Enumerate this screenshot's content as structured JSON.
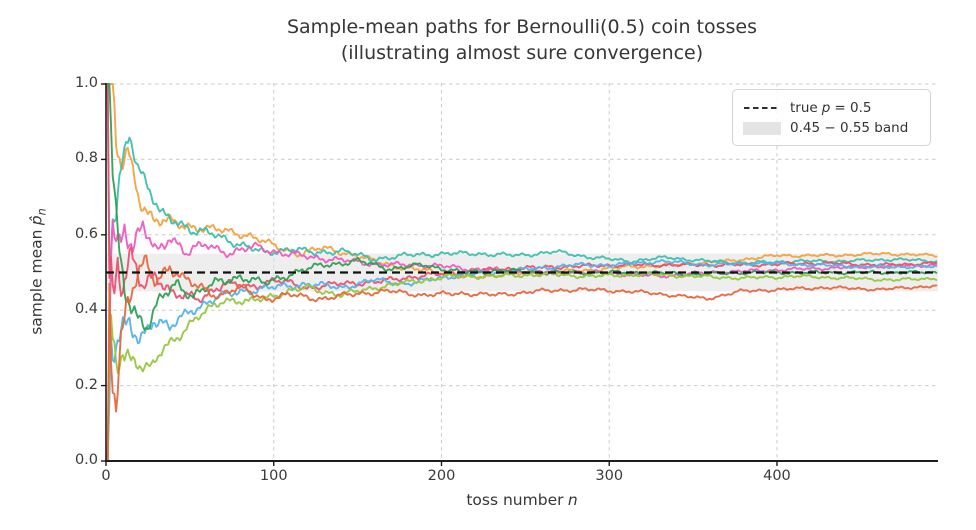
{
  "header": {
    "title": "Sample-mean paths for Bernoulli(0.5) coin tosses",
    "subtitle": "(illustrating almost sure convergence)"
  },
  "axes": {
    "xlabel_pre": "toss number",
    "xlabel_var": "n",
    "ylabel_pre": "sample mean",
    "ylabel_var": "p̂",
    "ylabel_sub": "n",
    "xticks": [
      {
        "v": 0,
        "label": "0"
      },
      {
        "v": 100,
        "label": "100"
      },
      {
        "v": 200,
        "label": "200"
      },
      {
        "v": 300,
        "label": "300"
      },
      {
        "v": 400,
        "label": "400"
      }
    ],
    "yticks": [
      {
        "v": 0.0,
        "label": "0.0"
      },
      {
        "v": 0.2,
        "label": "0.2"
      },
      {
        "v": 0.4,
        "label": "0.4"
      },
      {
        "v": 0.6,
        "label": "0.6"
      },
      {
        "v": 0.8,
        "label": "0.8"
      },
      {
        "v": 1.0,
        "label": "1.0"
      }
    ]
  },
  "legend": {
    "items": [
      {
        "sample": "dash-line",
        "pre": "true",
        "var": "p",
        "post": "= 0.5"
      },
      {
        "sample": "band-swatch",
        "label": "0.45 − 0.55 band"
      }
    ]
  },
  "colors": {
    "refline": "#111111",
    "band": "#e0e0e0",
    "grid": "#cccccc",
    "spine": "#1c1c1c",
    "text": "#363636"
  },
  "chart_data": {
    "type": "line",
    "title": "Sample-mean paths for Bernoulli(0.5) coin tosses",
    "subtitle": "(illustrating almost sure convergence)",
    "xlabel": "toss number n",
    "ylabel": "sample mean p̂_n",
    "xlim": [
      0,
      496
    ],
    "ylim": [
      0,
      1
    ],
    "grid": true,
    "legend_position": "upper right",
    "reference_line": {
      "y": 0.5,
      "label": "true p = 0.5",
      "style": "dashed",
      "color": "#111111"
    },
    "band": {
      "ymin": 0.45,
      "ymax": 0.55,
      "label": "0.45 − 0.55 band",
      "color": "#e0e0e0",
      "opacity": 0.55
    },
    "series": [
      {
        "name": "path-1-amber",
        "color": "#f5a03d",
        "keypoints": [
          [
            1,
            1
          ],
          [
            4,
            1
          ],
          [
            6,
            0.83
          ],
          [
            9,
            0.78
          ],
          [
            13,
            0.82
          ],
          [
            20,
            0.7
          ],
          [
            28,
            0.64
          ],
          [
            40,
            0.63
          ],
          [
            55,
            0.62
          ],
          [
            70,
            0.61
          ],
          [
            85,
            0.6
          ],
          [
            100,
            0.57
          ],
          [
            115,
            0.55
          ],
          [
            130,
            0.565
          ],
          [
            145,
            0.55
          ],
          [
            160,
            0.53
          ],
          [
            180,
            0.51
          ],
          [
            200,
            0.5
          ],
          [
            215,
            0.485
          ],
          [
            235,
            0.495
          ],
          [
            260,
            0.5
          ],
          [
            285,
            0.505
          ],
          [
            310,
            0.515
          ],
          [
            340,
            0.52
          ],
          [
            370,
            0.53
          ],
          [
            400,
            0.545
          ],
          [
            430,
            0.545
          ],
          [
            465,
            0.55
          ],
          [
            495,
            0.545
          ]
        ]
      },
      {
        "name": "path-2-teal",
        "color": "#3bc0ac",
        "keypoints": [
          [
            1,
            1
          ],
          [
            2,
            0.5
          ],
          [
            4,
            0.625
          ],
          [
            7,
            0.71
          ],
          [
            10,
            0.8
          ],
          [
            14,
            0.87
          ],
          [
            19,
            0.79
          ],
          [
            25,
            0.72
          ],
          [
            33,
            0.65
          ],
          [
            42,
            0.64
          ],
          [
            52,
            0.61
          ],
          [
            65,
            0.6
          ],
          [
            80,
            0.575
          ],
          [
            95,
            0.55
          ],
          [
            110,
            0.565
          ],
          [
            125,
            0.55
          ],
          [
            140,
            0.56
          ],
          [
            158,
            0.535
          ],
          [
            178,
            0.545
          ],
          [
            200,
            0.55
          ],
          [
            222,
            0.55
          ],
          [
            245,
            0.545
          ],
          [
            268,
            0.555
          ],
          [
            290,
            0.54
          ],
          [
            312,
            0.53
          ],
          [
            335,
            0.54
          ],
          [
            358,
            0.53
          ],
          [
            382,
            0.525
          ],
          [
            410,
            0.53
          ],
          [
            440,
            0.53
          ],
          [
            470,
            0.535
          ],
          [
            495,
            0.53
          ]
        ]
      },
      {
        "name": "path-3-magenta",
        "color": "#f05bc0",
        "keypoints": [
          [
            1,
            0
          ],
          [
            2,
            0.5
          ],
          [
            4,
            0.625
          ],
          [
            7,
            0.57
          ],
          [
            11,
            0.64
          ],
          [
            16,
            0.56
          ],
          [
            22,
            0.62
          ],
          [
            30,
            0.55
          ],
          [
            38,
            0.6
          ],
          [
            48,
            0.55
          ],
          [
            60,
            0.575
          ],
          [
            75,
            0.55
          ],
          [
            90,
            0.57
          ],
          [
            105,
            0.55
          ],
          [
            125,
            0.54
          ],
          [
            145,
            0.53
          ],
          [
            168,
            0.52
          ],
          [
            192,
            0.52
          ],
          [
            215,
            0.51
          ],
          [
            240,
            0.505
          ],
          [
            265,
            0.5
          ],
          [
            295,
            0.5
          ],
          [
            330,
            0.49
          ],
          [
            360,
            0.5
          ],
          [
            390,
            0.505
          ],
          [
            420,
            0.51
          ],
          [
            455,
            0.515
          ],
          [
            495,
            0.52
          ]
        ]
      },
      {
        "name": "path-4-crimson",
        "color": "#ed4f6e",
        "keypoints": [
          [
            1,
            1
          ],
          [
            2,
            0.5
          ],
          [
            4,
            0.45
          ],
          [
            7,
            0.55
          ],
          [
            10,
            0.46
          ],
          [
            15,
            0.53
          ],
          [
            22,
            0.46
          ],
          [
            30,
            0.5
          ],
          [
            40,
            0.44
          ],
          [
            55,
            0.43
          ],
          [
            70,
            0.47
          ],
          [
            85,
            0.46
          ],
          [
            100,
            0.48
          ],
          [
            120,
            0.46
          ],
          [
            140,
            0.47
          ],
          [
            162,
            0.475
          ],
          [
            185,
            0.49
          ],
          [
            210,
            0.5
          ],
          [
            240,
            0.51
          ],
          [
            270,
            0.515
          ],
          [
            305,
            0.52
          ],
          [
            345,
            0.52
          ],
          [
            385,
            0.52
          ],
          [
            425,
            0.525
          ],
          [
            465,
            0.52
          ],
          [
            495,
            0.525
          ]
        ]
      },
      {
        "name": "path-5-skyblue",
        "color": "#52b4e9",
        "keypoints": [
          [
            1,
            0
          ],
          [
            3,
            0.33
          ],
          [
            6,
            0.3
          ],
          [
            10,
            0.33
          ],
          [
            14,
            0.36
          ],
          [
            20,
            0.32
          ],
          [
            28,
            0.38
          ],
          [
            38,
            0.35
          ],
          [
            50,
            0.4
          ],
          [
            65,
            0.43
          ],
          [
            80,
            0.45
          ],
          [
            100,
            0.46
          ],
          [
            120,
            0.47
          ],
          [
            140,
            0.46
          ],
          [
            160,
            0.48
          ],
          [
            180,
            0.47
          ],
          [
            205,
            0.49
          ],
          [
            230,
            0.5
          ],
          [
            255,
            0.51
          ],
          [
            280,
            0.52
          ],
          [
            305,
            0.52
          ],
          [
            330,
            0.53
          ],
          [
            360,
            0.52
          ],
          [
            390,
            0.525
          ],
          [
            420,
            0.52
          ],
          [
            455,
            0.515
          ],
          [
            495,
            0.515
          ]
        ]
      },
      {
        "name": "path-6-green",
        "color": "#2fa053",
        "keypoints": [
          [
            1,
            1
          ],
          [
            2,
            1
          ],
          [
            4,
            0.75
          ],
          [
            6,
            0.6
          ],
          [
            9,
            0.5
          ],
          [
            13,
            0.44
          ],
          [
            18,
            0.39
          ],
          [
            25,
            0.36
          ],
          [
            33,
            0.43
          ],
          [
            42,
            0.47
          ],
          [
            52,
            0.44
          ],
          [
            65,
            0.47
          ],
          [
            80,
            0.49
          ],
          [
            95,
            0.47
          ],
          [
            112,
            0.5
          ],
          [
            130,
            0.52
          ],
          [
            150,
            0.53
          ],
          [
            170,
            0.51
          ],
          [
            190,
            0.52
          ],
          [
            212,
            0.5
          ],
          [
            235,
            0.505
          ],
          [
            262,
            0.5
          ],
          [
            292,
            0.5
          ],
          [
            322,
            0.5
          ],
          [
            352,
            0.495
          ],
          [
            382,
            0.5
          ],
          [
            415,
            0.5
          ],
          [
            450,
            0.5
          ],
          [
            495,
            0.5
          ]
        ]
      },
      {
        "name": "path-7-yellowgreen",
        "color": "#95c73e",
        "keypoints": [
          [
            1,
            0
          ],
          [
            3,
            0.33
          ],
          [
            6,
            0.26
          ],
          [
            10,
            0.31
          ],
          [
            15,
            0.27
          ],
          [
            22,
            0.25
          ],
          [
            27,
            0.24
          ],
          [
            34,
            0.3
          ],
          [
            42,
            0.33
          ],
          [
            55,
            0.38
          ],
          [
            70,
            0.43
          ],
          [
            85,
            0.42
          ],
          [
            100,
            0.44
          ],
          [
            120,
            0.46
          ],
          [
            140,
            0.44
          ],
          [
            160,
            0.46
          ],
          [
            182,
            0.475
          ],
          [
            205,
            0.49
          ],
          [
            232,
            0.49
          ],
          [
            260,
            0.495
          ],
          [
            290,
            0.49
          ],
          [
            320,
            0.495
          ],
          [
            350,
            0.49
          ],
          [
            380,
            0.485
          ],
          [
            412,
            0.49
          ],
          [
            442,
            0.485
          ],
          [
            470,
            0.48
          ],
          [
            495,
            0.485
          ]
        ]
      },
      {
        "name": "path-8-tomato",
        "color": "#e8663c",
        "keypoints": [
          [
            1,
            0
          ],
          [
            2,
            0.5
          ],
          [
            4,
            0.25
          ],
          [
            6,
            0.17
          ],
          [
            9,
            0.33
          ],
          [
            13,
            0.42
          ],
          [
            18,
            0.48
          ],
          [
            24,
            0.52
          ],
          [
            30,
            0.48
          ],
          [
            38,
            0.52
          ],
          [
            46,
            0.48
          ],
          [
            56,
            0.46
          ],
          [
            68,
            0.44
          ],
          [
            80,
            0.46
          ],
          [
            95,
            0.43
          ],
          [
            110,
            0.44
          ],
          [
            130,
            0.43
          ],
          [
            150,
            0.445
          ],
          [
            170,
            0.45
          ],
          [
            190,
            0.44
          ],
          [
            212,
            0.445
          ],
          [
            232,
            0.44
          ],
          [
            256,
            0.45
          ],
          [
            282,
            0.455
          ],
          [
            312,
            0.45
          ],
          [
            338,
            0.44
          ],
          [
            358,
            0.43
          ],
          [
            378,
            0.45
          ],
          [
            402,
            0.455
          ],
          [
            430,
            0.46
          ],
          [
            462,
            0.455
          ],
          [
            495,
            0.465
          ]
        ]
      }
    ]
  }
}
